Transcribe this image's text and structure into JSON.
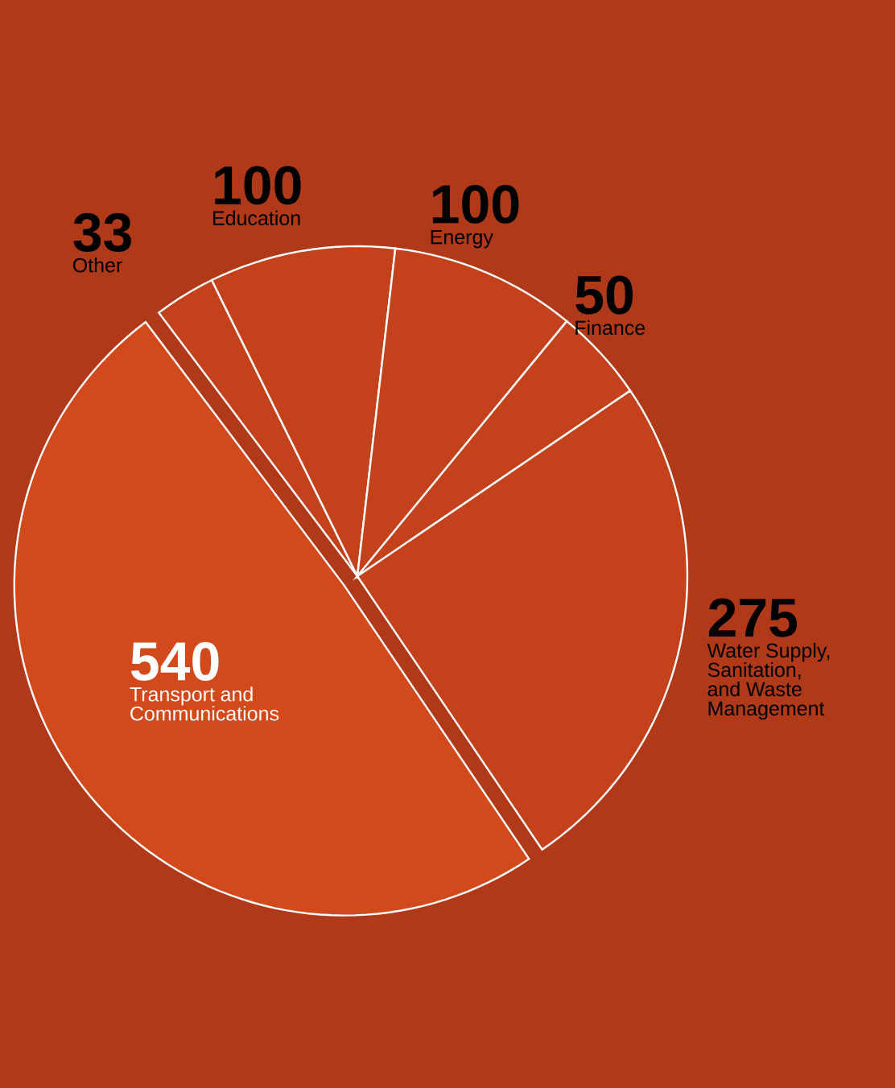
{
  "chart_data": {
    "type": "pie",
    "categories": [
      "Other",
      "Education",
      "Energy",
      "Finance",
      "Water Supply, Sanitation, and Waste Management",
      "Transport and Communications"
    ],
    "values": [
      33,
      100,
      100,
      50,
      275,
      540
    ],
    "colors": [
      "#c4421b",
      "#c4421b",
      "#c4421b",
      "#c4421b",
      "#c4421b",
      "#d2491c"
    ],
    "data_labels": true
  }
}
